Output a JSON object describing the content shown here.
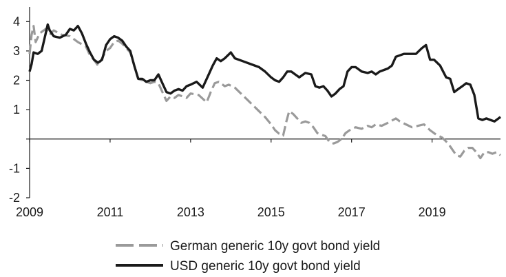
{
  "chart_data": {
    "type": "line",
    "title": "",
    "xlabel": "",
    "ylabel": "",
    "xlim": [
      2009.0,
      2020.7
    ],
    "ylim": [
      -2,
      4.5
    ],
    "x_ticks": [
      2009,
      2011,
      2013,
      2015,
      2017,
      2019
    ],
    "x_tick_labels": [
      "2009",
      "2011",
      "2013",
      "2015",
      "2017",
      "2019"
    ],
    "y_ticks": [
      -2,
      -1,
      0,
      1,
      2,
      3,
      4
    ],
    "y_tick_labels": [
      "-2",
      "-1",
      "",
      "1",
      "2",
      "3",
      "4"
    ],
    "grid": false,
    "legend_position": "bottom",
    "series": [
      {
        "name": "German generic 10y govt bond yield",
        "color": "#9a9a9a",
        "style": "dashed",
        "points": [
          [
            2009.0,
            2.9
          ],
          [
            2009.05,
            3.55
          ],
          [
            2009.1,
            3.85
          ],
          [
            2009.15,
            3.3
          ],
          [
            2009.25,
            3.6
          ],
          [
            2009.4,
            3.75
          ],
          [
            2009.5,
            3.55
          ],
          [
            2009.6,
            3.7
          ],
          [
            2009.8,
            3.55
          ],
          [
            2010.0,
            3.5
          ],
          [
            2010.2,
            3.3
          ],
          [
            2010.4,
            3.15
          ],
          [
            2010.5,
            2.85
          ],
          [
            2010.6,
            2.7
          ],
          [
            2010.7,
            2.5
          ],
          [
            2010.8,
            2.75
          ],
          [
            2010.9,
            3.0
          ],
          [
            2011.0,
            3.1
          ],
          [
            2011.1,
            3.3
          ],
          [
            2011.2,
            3.35
          ],
          [
            2011.3,
            3.25
          ],
          [
            2011.4,
            3.1
          ],
          [
            2011.5,
            2.95
          ],
          [
            2011.6,
            2.5
          ],
          [
            2011.7,
            2.05
          ],
          [
            2011.8,
            2.0
          ],
          [
            2011.9,
            1.95
          ],
          [
            2012.0,
            1.9
          ],
          [
            2012.1,
            1.95
          ],
          [
            2012.2,
            1.9
          ],
          [
            2012.3,
            1.6
          ],
          [
            2012.4,
            1.3
          ],
          [
            2012.5,
            1.45
          ],
          [
            2012.6,
            1.4
          ],
          [
            2012.7,
            1.5
          ],
          [
            2012.9,
            1.4
          ],
          [
            2013.0,
            1.55
          ],
          [
            2013.2,
            1.5
          ],
          [
            2013.4,
            1.25
          ],
          [
            2013.5,
            1.6
          ],
          [
            2013.6,
            1.9
          ],
          [
            2013.7,
            1.95
          ],
          [
            2013.85,
            1.8
          ],
          [
            2013.95,
            1.85
          ],
          [
            2014.1,
            1.75
          ],
          [
            2014.25,
            1.55
          ],
          [
            2014.4,
            1.35
          ],
          [
            2014.55,
            1.15
          ],
          [
            2014.7,
            0.95
          ],
          [
            2014.85,
            0.75
          ],
          [
            2015.0,
            0.5
          ],
          [
            2015.1,
            0.3
          ],
          [
            2015.2,
            0.18
          ],
          [
            2015.3,
            0.12
          ],
          [
            2015.38,
            0.6
          ],
          [
            2015.45,
            0.95
          ],
          [
            2015.55,
            0.85
          ],
          [
            2015.65,
            0.7
          ],
          [
            2015.75,
            0.55
          ],
          [
            2015.85,
            0.6
          ],
          [
            2015.95,
            0.55
          ],
          [
            2016.05,
            0.4
          ],
          [
            2016.15,
            0.2
          ],
          [
            2016.25,
            0.15
          ],
          [
            2016.35,
            0.1
          ],
          [
            2016.45,
            -0.1
          ],
          [
            2016.55,
            -0.15
          ],
          [
            2016.65,
            -0.1
          ],
          [
            2016.75,
            0.0
          ],
          [
            2016.85,
            0.2
          ],
          [
            2016.95,
            0.3
          ],
          [
            2017.1,
            0.4
          ],
          [
            2017.25,
            0.35
          ],
          [
            2017.4,
            0.45
          ],
          [
            2017.5,
            0.4
          ],
          [
            2017.6,
            0.5
          ],
          [
            2017.75,
            0.45
          ],
          [
            2017.9,
            0.55
          ],
          [
            2018.1,
            0.7
          ],
          [
            2018.2,
            0.6
          ],
          [
            2018.35,
            0.5
          ],
          [
            2018.5,
            0.4
          ],
          [
            2018.65,
            0.45
          ],
          [
            2018.8,
            0.5
          ],
          [
            2018.95,
            0.3
          ],
          [
            2019.1,
            0.15
          ],
          [
            2019.25,
            0.05
          ],
          [
            2019.4,
            -0.15
          ],
          [
            2019.5,
            -0.35
          ],
          [
            2019.6,
            -0.55
          ],
          [
            2019.7,
            -0.6
          ],
          [
            2019.8,
            -0.4
          ],
          [
            2019.9,
            -0.3
          ],
          [
            2020.0,
            -0.3
          ],
          [
            2020.1,
            -0.45
          ],
          [
            2020.2,
            -0.65
          ],
          [
            2020.3,
            -0.45
          ],
          [
            2020.4,
            -0.45
          ],
          [
            2020.5,
            -0.5
          ],
          [
            2020.6,
            -0.45
          ],
          [
            2020.7,
            -0.55
          ]
        ]
      },
      {
        "name": "USD generic 10y govt bond yield",
        "color": "#1a1a1a",
        "style": "solid",
        "points": [
          [
            2009.0,
            2.3
          ],
          [
            2009.05,
            2.55
          ],
          [
            2009.1,
            2.95
          ],
          [
            2009.2,
            2.9
          ],
          [
            2009.3,
            3.0
          ],
          [
            2009.4,
            3.6
          ],
          [
            2009.45,
            3.9
          ],
          [
            2009.5,
            3.7
          ],
          [
            2009.6,
            3.5
          ],
          [
            2009.75,
            3.45
          ],
          [
            2009.9,
            3.55
          ],
          [
            2010.0,
            3.75
          ],
          [
            2010.1,
            3.7
          ],
          [
            2010.2,
            3.85
          ],
          [
            2010.3,
            3.6
          ],
          [
            2010.4,
            3.25
          ],
          [
            2010.5,
            2.95
          ],
          [
            2010.6,
            2.7
          ],
          [
            2010.7,
            2.6
          ],
          [
            2010.8,
            2.7
          ],
          [
            2010.9,
            3.2
          ],
          [
            2011.0,
            3.4
          ],
          [
            2011.1,
            3.5
          ],
          [
            2011.2,
            3.45
          ],
          [
            2011.3,
            3.35
          ],
          [
            2011.4,
            3.15
          ],
          [
            2011.5,
            3.0
          ],
          [
            2011.6,
            2.5
          ],
          [
            2011.7,
            2.05
          ],
          [
            2011.8,
            2.05
          ],
          [
            2011.9,
            1.95
          ],
          [
            2012.0,
            2.0
          ],
          [
            2012.1,
            2.0
          ],
          [
            2012.2,
            2.2
          ],
          [
            2012.3,
            1.9
          ],
          [
            2012.4,
            1.6
          ],
          [
            2012.5,
            1.55
          ],
          [
            2012.6,
            1.65
          ],
          [
            2012.7,
            1.7
          ],
          [
            2012.8,
            1.65
          ],
          [
            2012.9,
            1.8
          ],
          [
            2013.0,
            1.85
          ],
          [
            2013.15,
            1.95
          ],
          [
            2013.3,
            1.75
          ],
          [
            2013.45,
            2.2
          ],
          [
            2013.55,
            2.5
          ],
          [
            2013.65,
            2.75
          ],
          [
            2013.75,
            2.65
          ],
          [
            2013.85,
            2.75
          ],
          [
            2014.0,
            2.95
          ],
          [
            2014.1,
            2.75
          ],
          [
            2014.3,
            2.65
          ],
          [
            2014.5,
            2.55
          ],
          [
            2014.7,
            2.45
          ],
          [
            2014.85,
            2.3
          ],
          [
            2015.0,
            2.1
          ],
          [
            2015.1,
            2.0
          ],
          [
            2015.2,
            1.95
          ],
          [
            2015.3,
            2.1
          ],
          [
            2015.4,
            2.3
          ],
          [
            2015.5,
            2.3
          ],
          [
            2015.6,
            2.2
          ],
          [
            2015.7,
            2.1
          ],
          [
            2015.85,
            2.25
          ],
          [
            2016.0,
            2.2
          ],
          [
            2016.1,
            1.8
          ],
          [
            2016.2,
            1.75
          ],
          [
            2016.3,
            1.8
          ],
          [
            2016.4,
            1.65
          ],
          [
            2016.5,
            1.45
          ],
          [
            2016.6,
            1.55
          ],
          [
            2016.7,
            1.7
          ],
          [
            2016.8,
            1.8
          ],
          [
            2016.9,
            2.3
          ],
          [
            2017.0,
            2.45
          ],
          [
            2017.1,
            2.45
          ],
          [
            2017.25,
            2.3
          ],
          [
            2017.4,
            2.25
          ],
          [
            2017.5,
            2.3
          ],
          [
            2017.6,
            2.2
          ],
          [
            2017.7,
            2.3
          ],
          [
            2017.8,
            2.35
          ],
          [
            2017.9,
            2.4
          ],
          [
            2018.0,
            2.5
          ],
          [
            2018.1,
            2.8
          ],
          [
            2018.2,
            2.85
          ],
          [
            2018.3,
            2.9
          ],
          [
            2018.45,
            2.9
          ],
          [
            2018.6,
            2.9
          ],
          [
            2018.75,
            3.1
          ],
          [
            2018.85,
            3.2
          ],
          [
            2018.95,
            2.7
          ],
          [
            2019.05,
            2.7
          ],
          [
            2019.2,
            2.5
          ],
          [
            2019.35,
            2.1
          ],
          [
            2019.45,
            2.05
          ],
          [
            2019.55,
            1.6
          ],
          [
            2019.65,
            1.7
          ],
          [
            2019.75,
            1.8
          ],
          [
            2019.85,
            1.9
          ],
          [
            2019.95,
            1.85
          ],
          [
            2020.05,
            1.5
          ],
          [
            2020.15,
            0.7
          ],
          [
            2020.25,
            0.65
          ],
          [
            2020.35,
            0.7
          ],
          [
            2020.45,
            0.65
          ],
          [
            2020.55,
            0.6
          ],
          [
            2020.65,
            0.7
          ],
          [
            2020.7,
            0.75
          ]
        ]
      }
    ]
  },
  "legend": [
    {
      "label": "German generic 10y govt bond yield",
      "color": "#9a9a9a",
      "style": "dashed"
    },
    {
      "label": "USD generic 10y govt bond yield",
      "color": "#1a1a1a",
      "style": "solid"
    }
  ]
}
